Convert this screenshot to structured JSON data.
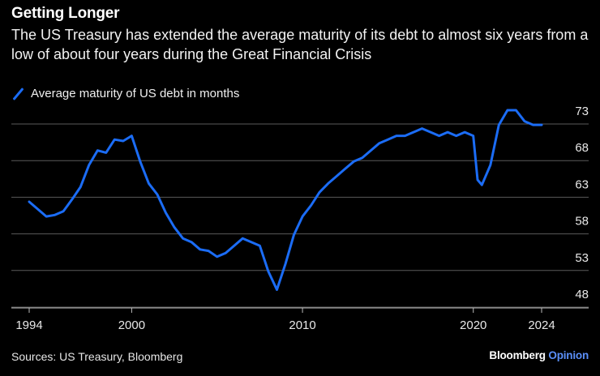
{
  "header": {
    "title": "Getting Longer",
    "subtitle": "The US Treasury has extended the average maturity of its debt to almost six years from a low of about four years during the Great Financial Crisis"
  },
  "legend": {
    "label": "Average maturity of US debt in months",
    "color": "#1b6cf5"
  },
  "footer": {
    "source": "Sources: US Treasury, Bloomberg",
    "brand_main": "Bloomberg",
    "brand_accent": "Opinion"
  },
  "chart_data": {
    "type": "line",
    "title": "Getting Longer",
    "xlabel": "",
    "ylabel": "",
    "xlim": [
      1994,
      2026
    ],
    "ylim": [
      47,
      74
    ],
    "x_ticks": [
      1994,
      2000,
      2010,
      2020,
      2024
    ],
    "y_ticks": [
      48,
      53,
      58,
      63,
      68,
      73
    ],
    "grid": true,
    "series": [
      {
        "name": "Average maturity of US debt in months",
        "color": "#1b6cf5",
        "x": [
          1994,
          1994.5,
          1995,
          1995.5,
          1996,
          1996.5,
          1997,
          1997.5,
          1998,
          1998.5,
          1999,
          1999.5,
          2000,
          2000.5,
          2001,
          2001.5,
          2002,
          2002.5,
          2003,
          2003.5,
          2004,
          2004.5,
          2005,
          2005.5,
          2006,
          2006.5,
          2007,
          2007.5,
          2008,
          2008.5,
          2009,
          2009.5,
          2010,
          2010.5,
          2011,
          2011.5,
          2012,
          2012.5,
          2013,
          2013.5,
          2014,
          2014.5,
          2015,
          2015.5,
          2016,
          2016.5,
          2017,
          2017.5,
          2018,
          2018.5,
          2019,
          2019.5,
          2020,
          2020.25,
          2020.5,
          2021,
          2021.5,
          2022,
          2022.5,
          2023,
          2023.5,
          2024
        ],
        "values": [
          60.5,
          59.5,
          58.5,
          58.7,
          59.2,
          60.8,
          62.5,
          65.5,
          67.5,
          67.2,
          69.0,
          68.8,
          69.5,
          66.0,
          63.0,
          61.5,
          59.0,
          57.0,
          55.5,
          55.0,
          54.0,
          53.8,
          53.0,
          53.5,
          54.5,
          55.5,
          55.0,
          54.5,
          51.0,
          48.5,
          52.0,
          56.0,
          58.5,
          60.0,
          61.8,
          63.0,
          64.0,
          65.0,
          66.0,
          66.5,
          67.5,
          68.5,
          69.0,
          69.5,
          69.5,
          70.0,
          70.5,
          70.0,
          69.5,
          70.0,
          69.5,
          70.0,
          69.5,
          63.5,
          62.8,
          65.5,
          71.0,
          73.0,
          73.0,
          71.5,
          71.0,
          71.0
        ]
      }
    ]
  }
}
